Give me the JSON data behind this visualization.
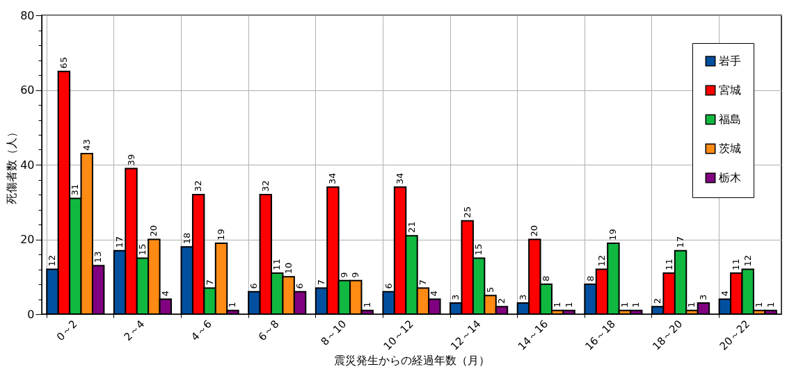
{
  "chart_data": {
    "type": "bar",
    "xlabel": "震災発生からの経過年数（月）",
    "ylabel": "死傷者数（人）",
    "categories": [
      "0～2",
      "2～4",
      "4～6",
      "6～8",
      "8～10",
      "10～12",
      "12～14",
      "14～16",
      "16～18",
      "18～20",
      "20～22"
    ],
    "series": [
      {
        "name": "岩手",
        "color": "#00509f",
        "values": [
          12,
          17,
          18,
          6,
          7,
          6,
          3,
          3,
          8,
          2,
          4
        ]
      },
      {
        "name": "宮城",
        "color": "#ff0000",
        "values": [
          65,
          39,
          32,
          32,
          34,
          34,
          25,
          20,
          12,
          11,
          11
        ]
      },
      {
        "name": "福島",
        "color": "#10b840",
        "values": [
          31,
          15,
          7,
          11,
          9,
          21,
          15,
          8,
          19,
          17,
          12
        ]
      },
      {
        "name": "茨城",
        "color": "#ff8a14",
        "values": [
          43,
          20,
          19,
          10,
          9,
          7,
          5,
          1,
          1,
          1,
          1
        ]
      },
      {
        "name": "栃木",
        "color": "#800080",
        "values": [
          13,
          4,
          1,
          6,
          1,
          4,
          2,
          1,
          1,
          3,
          1
        ]
      }
    ],
    "ylim": [
      0,
      80
    ],
    "yticks": [
      0,
      {
        "value": 4,
        "label": null
      },
      {
        "value": 8,
        "label": null
      },
      {
        "value": 12,
        "label": null
      },
      {
        "value": 16,
        "label": null
      },
      20,
      {
        "value": 24,
        "label": null
      },
      {
        "value": 28,
        "label": null
      },
      {
        "value": 32,
        "label": null
      },
      {
        "value": 36,
        "label": null
      },
      40,
      {
        "value": 44,
        "label": null
      },
      {
        "value": 48,
        "label": null
      },
      {
        "value": 52,
        "label": null
      },
      {
        "value": 56,
        "label": null
      },
      60,
      {
        "value": 64,
        "label": null
      },
      {
        "value": 68,
        "label": null
      },
      {
        "value": 72,
        "label": null
      },
      {
        "value": 76,
        "label": null
      },
      80
    ],
    "grid": true,
    "legend": "top right",
    "data_labels": true
  }
}
